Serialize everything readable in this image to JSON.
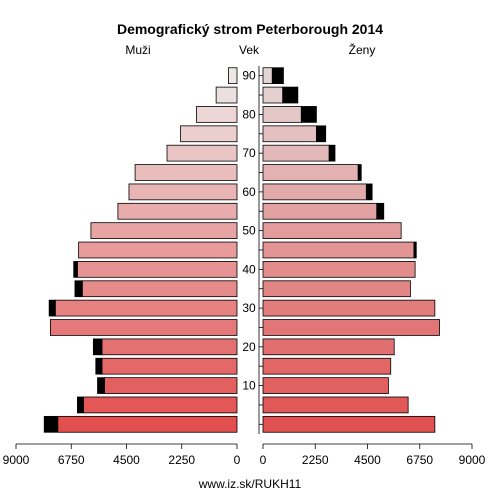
{
  "chart_data": {
    "type": "bar",
    "title": "Demografický strom Peterborough 2014",
    "left_label": "Muži",
    "center_label": "Vek",
    "right_label": "Ženy",
    "source": "www.iz.sk/RUKH11",
    "x_max": 9000,
    "x_ticks": [
      9000,
      6750,
      4500,
      2250,
      0
    ],
    "x_ticks_right": [
      0,
      2250,
      4500,
      6750,
      9000
    ],
    "age_ticks": [
      10,
      20,
      30,
      40,
      50,
      60,
      70,
      80,
      90
    ],
    "age_groups": [
      "0-4",
      "5-9",
      "10-14",
      "15-19",
      "20-24",
      "25-29",
      "30-34",
      "35-39",
      "40-44",
      "45-49",
      "50-54",
      "55-59",
      "60-64",
      "65-69",
      "70-74",
      "75-79",
      "80-84",
      "85-89",
      "90+"
    ],
    "series": [
      {
        "name": "Muži",
        "values": [
          7300,
          6250,
          5400,
          5500,
          5500,
          7600,
          7400,
          6300,
          6500,
          6450,
          5950,
          4850,
          4400,
          4150,
          2850,
          2300,
          1650,
          850,
          350
        ]
      },
      {
        "name": "Muži (prebytok)",
        "values": [
          550,
          250,
          280,
          250,
          350,
          0,
          250,
          300,
          150,
          0,
          0,
          0,
          0,
          0,
          0,
          0,
          0,
          0,
          0
        ]
      },
      {
        "name": "Ženy",
        "values": [
          7400,
          6250,
          5400,
          5500,
          5650,
          7600,
          7400,
          6350,
          6550,
          6500,
          5950,
          4900,
          4450,
          4100,
          2850,
          2300,
          1650,
          850,
          400
        ]
      },
      {
        "name": "Ženy (prebytok)",
        "values": [
          0,
          0,
          0,
          0,
          0,
          0,
          0,
          0,
          0,
          100,
          0,
          300,
          250,
          130,
          250,
          400,
          650,
          650,
          480
        ]
      }
    ],
    "colors": {
      "male_gradient": [
        "#e24f4f",
        "#ede7e7"
      ],
      "female_gradient": [
        "#e15151",
        "#e4d6d6"
      ],
      "excess": "#000000",
      "outline": "#000000"
    }
  }
}
